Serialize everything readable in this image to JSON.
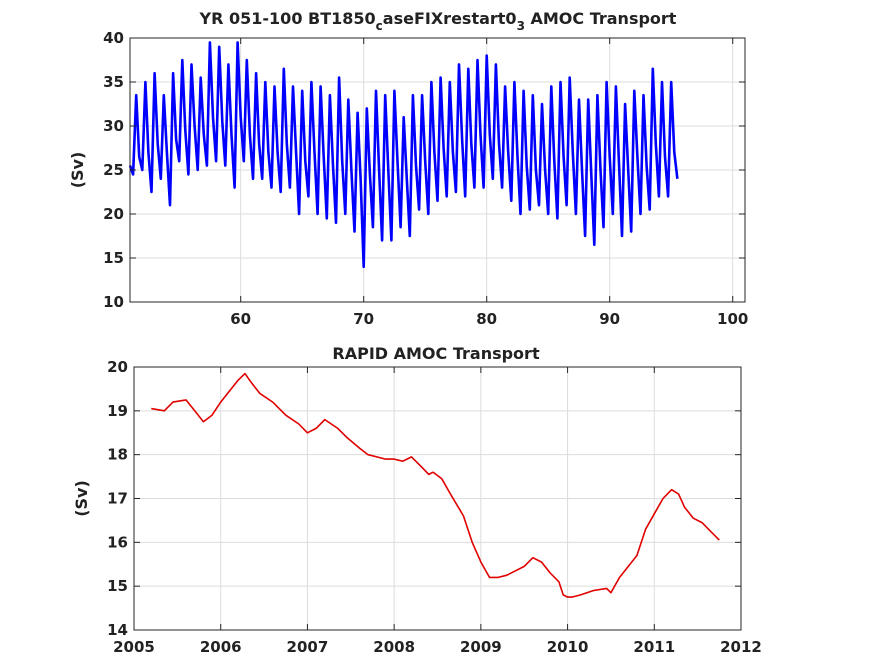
{
  "chart_data": [
    {
      "type": "line",
      "title_main": "YR 051-100 BT1850",
      "title_sub1": "c",
      "title_mid": "aseFIXrestart0",
      "title_sub2": "3",
      "title_end": " AMOC Transport",
      "xlabel": "",
      "ylabel": "(Sv)",
      "xlim": [
        51,
        101
      ],
      "ylim": [
        10,
        40
      ],
      "xticks": [
        60,
        70,
        80,
        90,
        100
      ],
      "yticks": [
        10,
        15,
        20,
        25,
        30,
        35,
        40
      ],
      "grid": true,
      "line_color": "#0000ff",
      "series": [
        {
          "x_start": 51.0,
          "x_step": 0.25,
          "values": [
            25.5,
            24.5,
            33.5,
            26.5,
            25.0,
            35.0,
            27.0,
            22.5,
            36.0,
            28.0,
            24.0,
            33.5,
            27.0,
            21.0,
            36.0,
            28.5,
            26.0,
            37.5,
            29.5,
            24.5,
            37.0,
            30.0,
            25.0,
            35.5,
            29.0,
            25.5,
            39.5,
            31.0,
            26.0,
            39.0,
            30.5,
            25.5,
            37.0,
            29.0,
            23.0,
            39.5,
            31.0,
            26.0,
            37.5,
            29.0,
            24.0,
            36.0,
            28.0,
            24.0,
            35.0,
            27.0,
            23.0,
            34.5,
            27.0,
            22.5,
            36.5,
            28.0,
            23.0,
            34.5,
            27.0,
            20.0,
            34.0,
            26.0,
            22.0,
            35.0,
            27.0,
            20.0,
            34.5,
            26.5,
            19.5,
            33.5,
            25.5,
            19.0,
            35.5,
            26.0,
            20.0,
            33.0,
            25.0,
            18.0,
            31.5,
            24.0,
            14.0,
            32.0,
            24.5,
            18.5,
            34.0,
            25.0,
            17.0,
            33.5,
            25.0,
            17.0,
            34.0,
            26.0,
            18.5,
            31.0,
            24.0,
            17.5,
            33.5,
            25.5,
            20.5,
            33.5,
            26.0,
            20.0,
            35.0,
            27.0,
            21.5,
            35.5,
            27.5,
            22.0,
            35.0,
            27.0,
            22.5,
            37.0,
            28.5,
            22.0,
            36.5,
            28.0,
            23.0,
            37.5,
            29.0,
            23.0,
            38.0,
            29.0,
            24.0,
            37.0,
            28.0,
            23.0,
            34.5,
            27.0,
            21.5,
            35.0,
            26.5,
            20.0,
            34.0,
            25.5,
            20.5,
            33.5,
            25.0,
            21.0,
            32.5,
            25.0,
            20.0,
            34.5,
            26.0,
            19.5,
            35.0,
            26.5,
            21.0,
            35.5,
            27.0,
            20.0,
            33.0,
            25.0,
            17.5,
            33.0,
            24.5,
            16.5,
            33.5,
            25.0,
            18.5,
            35.0,
            26.5,
            20.0,
            34.5,
            26.0,
            17.5,
            32.5,
            25.0,
            18.0,
            34.0,
            26.5,
            20.0,
            33.5,
            25.5,
            20.5,
            36.5,
            28.0,
            22.0,
            35.0,
            26.5,
            22.0,
            35.0,
            27.0,
            24.0
          ]
        }
      ]
    },
    {
      "type": "line",
      "title": "RAPID AMOC Transport",
      "xlabel": "",
      "ylabel": "(Sv)",
      "xlim": [
        2005,
        2012
      ],
      "ylim": [
        14,
        20
      ],
      "xticks": [
        2005,
        2006,
        2007,
        2008,
        2009,
        2010,
        2011,
        2012
      ],
      "yticks": [
        14,
        15,
        16,
        17,
        18,
        19,
        20
      ],
      "grid": true,
      "line_color": "#e00000",
      "series": [
        {
          "x": [
            2005.2,
            2005.35,
            2005.45,
            2005.6,
            2005.7,
            2005.8,
            2005.9,
            2006.0,
            2006.1,
            2006.2,
            2006.28,
            2006.35,
            2006.45,
            2006.6,
            2006.75,
            2006.9,
            2007.0,
            2007.1,
            2007.2,
            2007.35,
            2007.45,
            2007.6,
            2007.7,
            2007.8,
            2007.9,
            2008.0,
            2008.1,
            2008.2,
            2008.3,
            2008.4,
            2008.45,
            2008.55,
            2008.65,
            2008.8,
            2008.9,
            2009.0,
            2009.1,
            2009.2,
            2009.3,
            2009.4,
            2009.5,
            2009.6,
            2009.7,
            2009.8,
            2009.9,
            2009.95,
            2010.0,
            2010.05,
            2010.15,
            2010.3,
            2010.45,
            2010.5,
            2010.6,
            2010.7,
            2010.8,
            2010.9,
            2011.0,
            2011.1,
            2011.2,
            2011.28,
            2011.35,
            2011.45,
            2011.55,
            2011.65,
            2011.75
          ],
          "values": [
            19.05,
            19.0,
            19.2,
            19.25,
            19.0,
            18.75,
            18.9,
            19.2,
            19.45,
            19.7,
            19.85,
            19.65,
            19.4,
            19.2,
            18.9,
            18.7,
            18.5,
            18.6,
            18.8,
            18.6,
            18.4,
            18.15,
            18.0,
            17.95,
            17.9,
            17.9,
            17.85,
            17.95,
            17.75,
            17.55,
            17.6,
            17.45,
            17.1,
            16.6,
            16.0,
            15.55,
            15.2,
            15.2,
            15.25,
            15.35,
            15.45,
            15.65,
            15.55,
            15.3,
            15.1,
            14.8,
            14.75,
            14.75,
            14.8,
            14.9,
            14.95,
            14.85,
            15.2,
            15.45,
            15.7,
            16.3,
            16.65,
            17.0,
            17.2,
            17.1,
            16.8,
            16.55,
            16.45,
            16.25,
            16.05
          ]
        }
      ]
    }
  ]
}
